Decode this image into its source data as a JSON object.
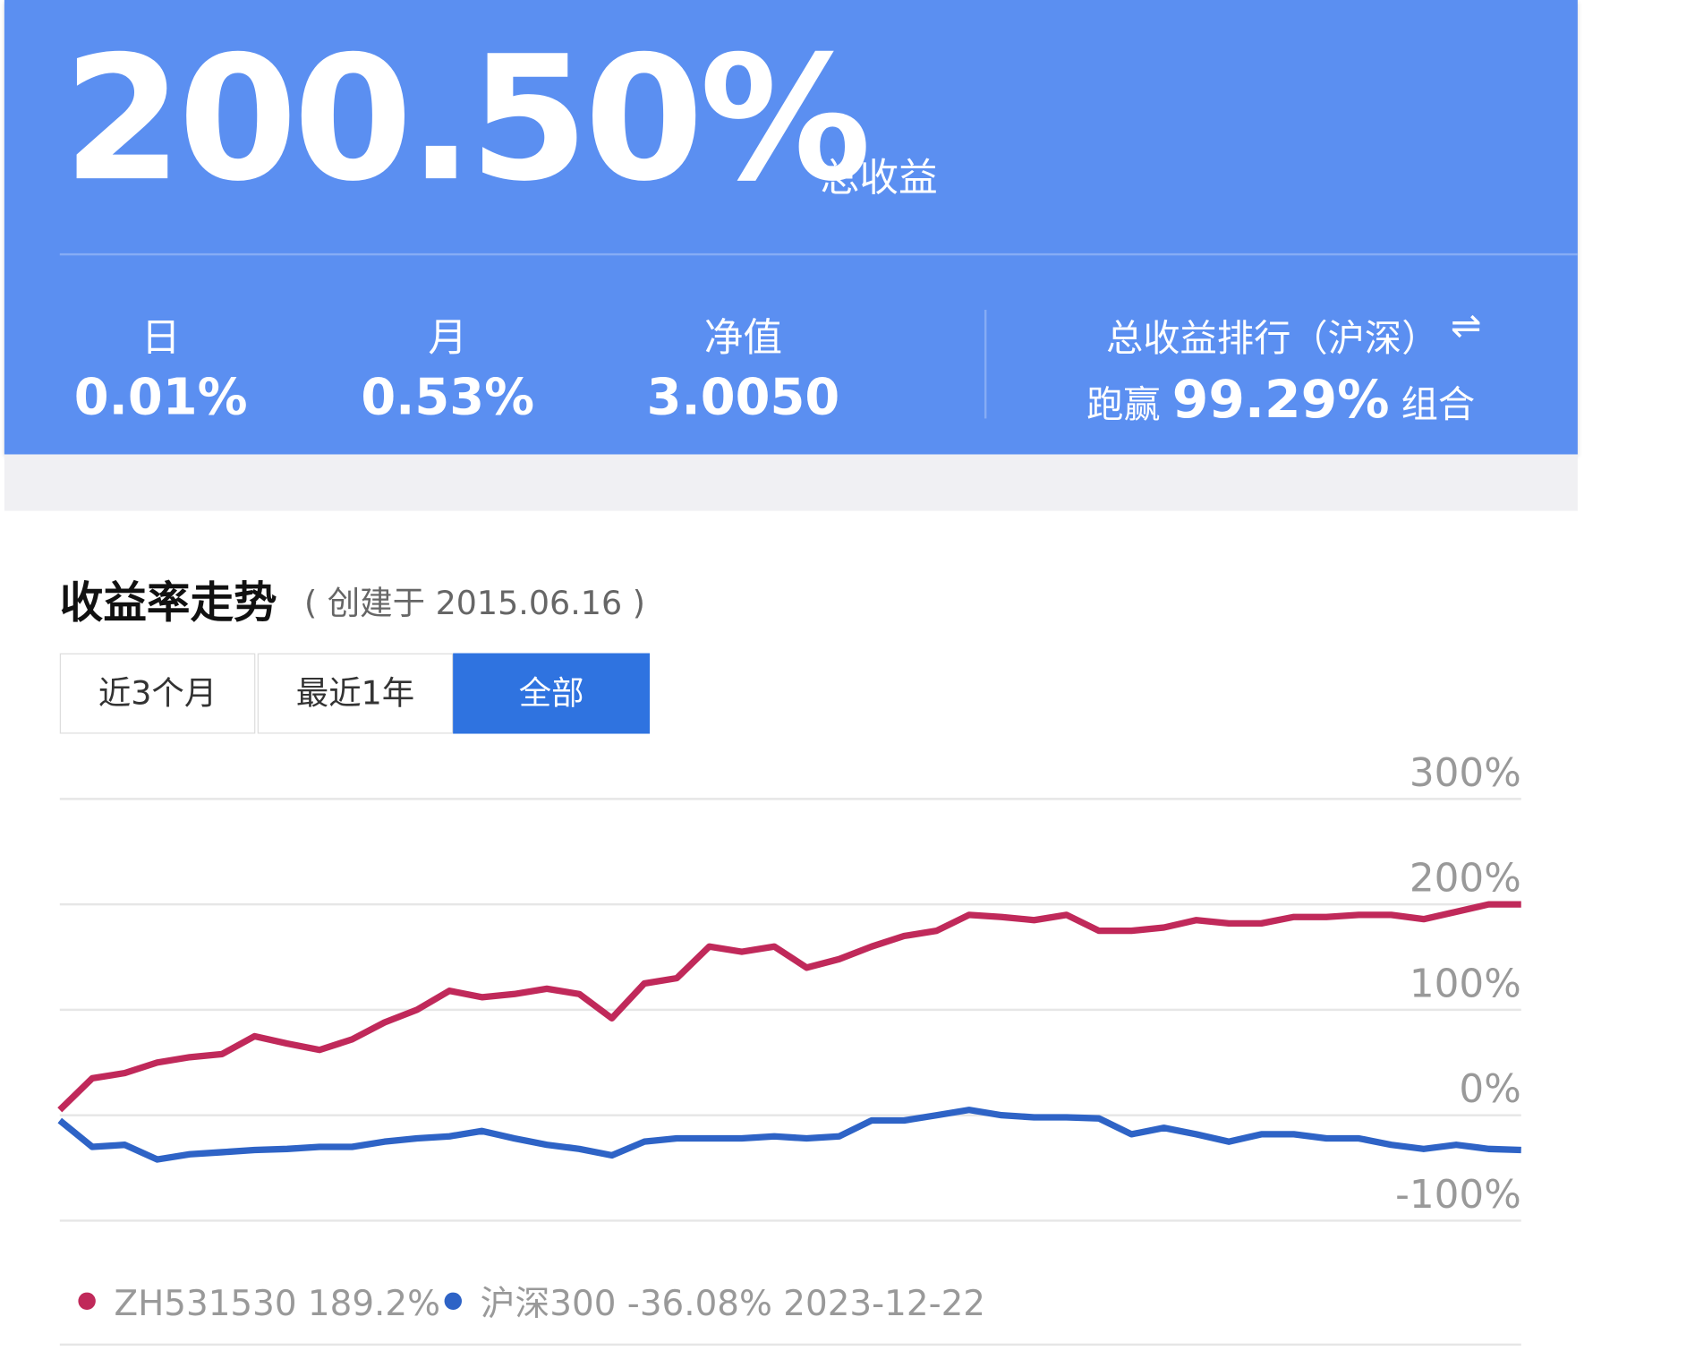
{
  "header": {
    "total_return": "200.50%",
    "total_return_label": "总收益",
    "stats": [
      {
        "label": "日",
        "value": "0.01%"
      },
      {
        "label": "月",
        "value": "0.53%"
      },
      {
        "label": "净值",
        "value": "3.0050"
      }
    ],
    "ranking": {
      "title": "总收益排行（沪深）",
      "prefix": "跑赢",
      "value": "99.29%",
      "suffix": "组合"
    }
  },
  "section": {
    "title": "收益率走势",
    "subtitle": "( 创建于 2015.06.16 )",
    "tabs": [
      "近3个月",
      "最近1年",
      "全部"
    ]
  },
  "chart_data": {
    "type": "line",
    "categories": [
      null,
      null,
      null,
      null,
      null,
      null,
      null,
      null,
      null,
      null,
      null,
      null,
      null,
      null,
      null,
      null,
      null,
      null,
      null,
      null,
      null,
      null,
      null,
      null,
      null,
      null,
      null,
      null,
      null,
      null,
      null,
      null,
      null,
      null,
      null,
      null,
      null,
      null,
      null,
      null,
      null,
      null,
      null,
      null,
      null,
      null
    ],
    "series": [
      {
        "name": "ZH531530 189.2%",
        "color": "#c0295a",
        "values": [
          5,
          35,
          40,
          50,
          55,
          58,
          75,
          68,
          62,
          72,
          88,
          100,
          118,
          112,
          115,
          120,
          115,
          92,
          125,
          130,
          160,
          155,
          160,
          140,
          148,
          160,
          170,
          175,
          190,
          188,
          185,
          190,
          175,
          175,
          178,
          185,
          182,
          182,
          188,
          188,
          190,
          190,
          186,
          193,
          200,
          200
        ]
      },
      {
        "name": "沪深300 -36.08% 2023-12-22",
        "color": "#2e63c6",
        "values": [
          -5,
          -30,
          -28,
          -42,
          -37,
          -35,
          -33,
          -32,
          -30,
          -30,
          -25,
          -22,
          -20,
          -15,
          -22,
          -28,
          -32,
          -38,
          -25,
          -22,
          -22,
          -22,
          -20,
          -22,
          -20,
          -5,
          -5,
          0,
          5,
          0,
          -2,
          -2,
          -3,
          -18,
          -12,
          -18,
          -25,
          -18,
          -18,
          -22,
          -22,
          -28,
          -32,
          -28,
          -32,
          -33
        ]
      }
    ],
    "ylim": [
      -100,
      300
    ],
    "yticks": [
      {
        "value": -100,
        "label": "-100%"
      },
      {
        "value": 0,
        "label": "0%"
      },
      {
        "value": 100,
        "label": "100%"
      },
      {
        "value": 200,
        "label": "200%"
      },
      {
        "value": 300,
        "label": "300%"
      }
    ],
    "grid": true
  }
}
